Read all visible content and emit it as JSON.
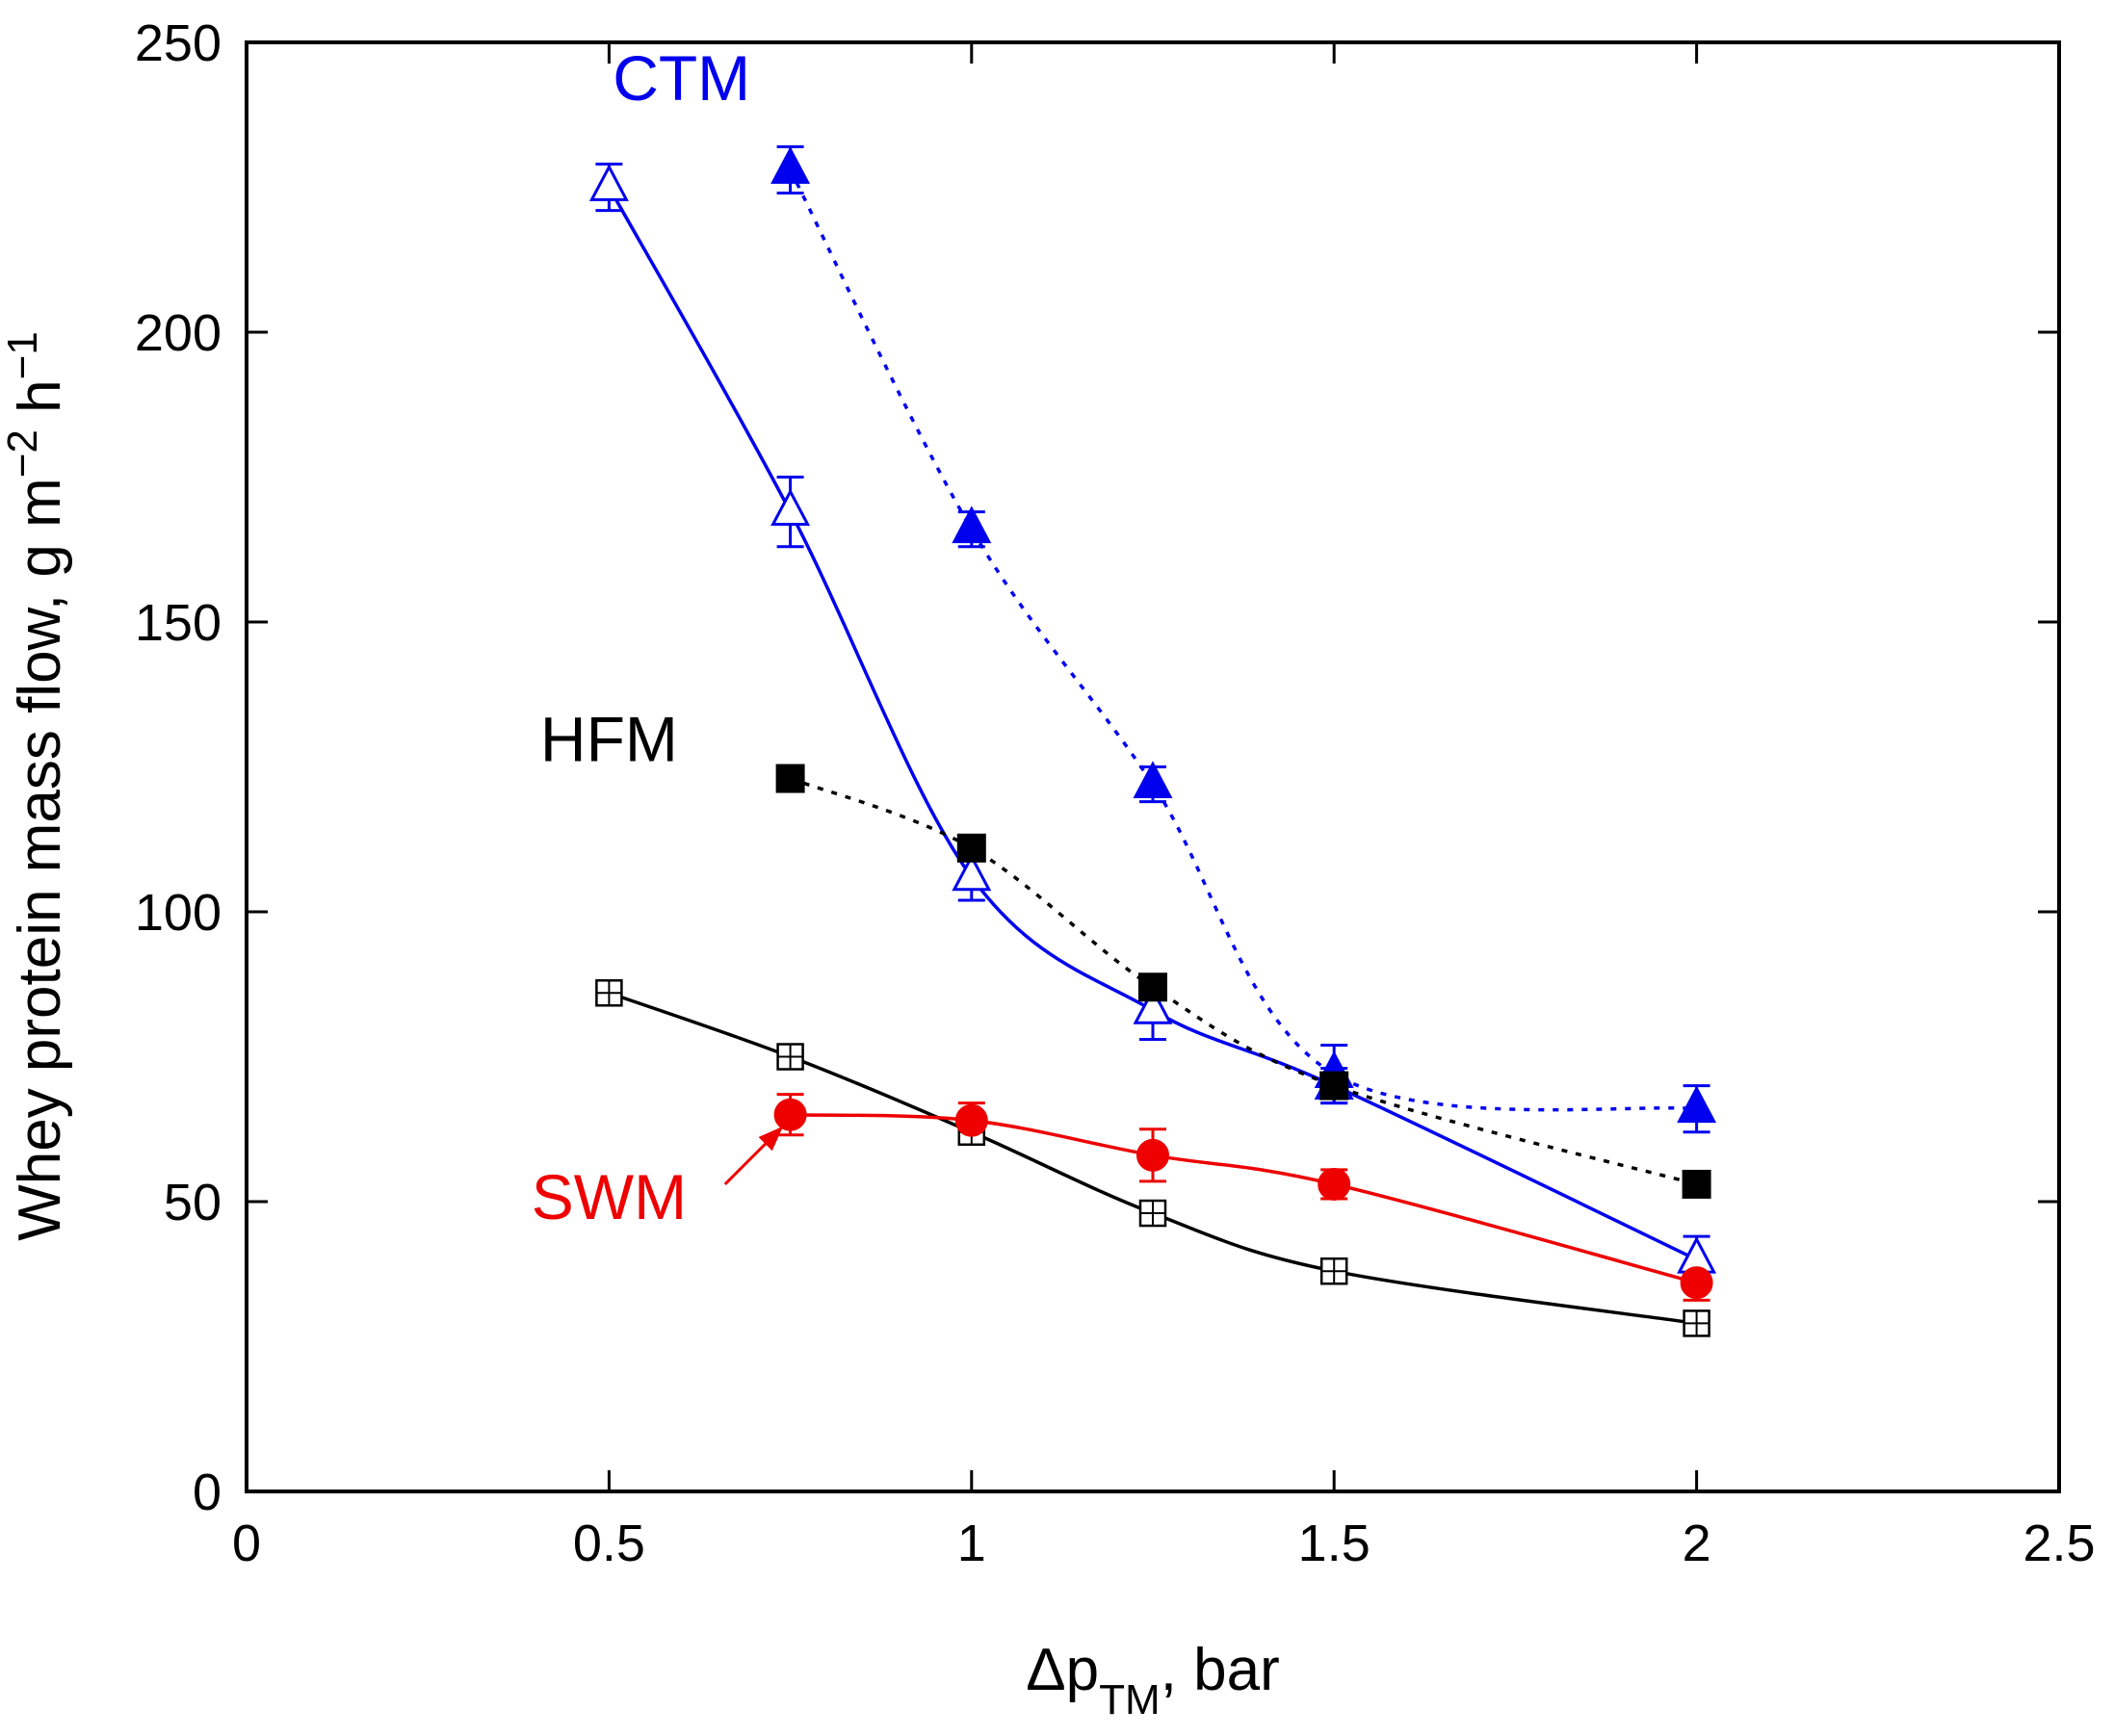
{
  "chart_data": {
    "type": "line",
    "title": "",
    "xlabel": {
      "main": "Δp",
      "sub": "TM",
      "tail": ", bar"
    },
    "ylabel": {
      "main": "Whey protein mass flow, g m",
      "sup1": "−2",
      "mid": " h",
      "sup2": "−1"
    },
    "xlim": [
      0,
      2.5
    ],
    "ylim": [
      0,
      250
    ],
    "xticks": [
      0,
      0.5,
      1,
      1.5,
      2,
      2.5
    ],
    "xtick_labels": [
      "0",
      "0.5",
      "1",
      "1.5",
      "2",
      "2.5"
    ],
    "yticks": [
      0,
      50,
      100,
      150,
      200,
      250
    ],
    "ytick_labels": [
      "0",
      "50",
      "100",
      "150",
      "200",
      "250"
    ],
    "grid": false,
    "series": [
      {
        "id": "ctm-open",
        "group": "CTM",
        "marker": "triangle-open",
        "line": "solid",
        "color": "#0000ee",
        "x": [
          0.5,
          0.75,
          1.0,
          1.25,
          1.5,
          2.0
        ],
        "y": [
          225,
          169,
          106,
          83,
          70,
          40
        ],
        "err": [
          4,
          6,
          4,
          5,
          3,
          4
        ]
      },
      {
        "id": "ctm-filled",
        "group": "CTM",
        "marker": "triangle-filled",
        "line": "dotted",
        "color": "#0000ee",
        "x": [
          0.75,
          1.0,
          1.25,
          1.5,
          2.0
        ],
        "y": [
          228,
          166,
          122,
          72,
          66
        ],
        "err": [
          4,
          3,
          3,
          5,
          4
        ]
      },
      {
        "id": "hfm-filled",
        "group": "HFM",
        "marker": "square-filled",
        "line": "dotted",
        "color": "#000000",
        "x": [
          0.75,
          1.0,
          1.25,
          1.5,
          2.0
        ],
        "y": [
          123,
          111,
          87,
          70,
          53
        ],
        "err": [
          0,
          0,
          0,
          0,
          0
        ]
      },
      {
        "id": "hfm-open",
        "group": "HFM",
        "marker": "square-crossed",
        "line": "solid",
        "color": "#000000",
        "x": [
          0.5,
          0.75,
          1.0,
          1.25,
          1.5,
          2.0
        ],
        "y": [
          86,
          75,
          62,
          48,
          38,
          29
        ],
        "err": [
          0,
          0,
          0,
          0,
          0,
          0
        ]
      },
      {
        "id": "swm",
        "group": "SWM",
        "marker": "circle-filled",
        "line": "solid",
        "color": "#ee0000",
        "x": [
          0.75,
          1.0,
          1.25,
          1.5,
          2.0
        ],
        "y": [
          65,
          64,
          58,
          53,
          36
        ],
        "err": [
          3.5,
          3,
          4.5,
          2.5,
          3
        ]
      }
    ],
    "annotations": [
      {
        "id": "ctm",
        "text": "CTM",
        "color": "#0000ee",
        "at_x": 0.6,
        "at_y": 240
      },
      {
        "id": "hfm",
        "text": "HFM",
        "color": "#000000",
        "at_x": 0.5,
        "at_y": 126
      },
      {
        "id": "swm",
        "text": "SWM",
        "color": "#ee0000",
        "at_x": 0.5,
        "at_y": 47
      }
    ],
    "arrow": {
      "color": "#ee0000",
      "from_x": 0.66,
      "from_y": 53,
      "to_x": 0.74,
      "to_y": 63
    }
  }
}
